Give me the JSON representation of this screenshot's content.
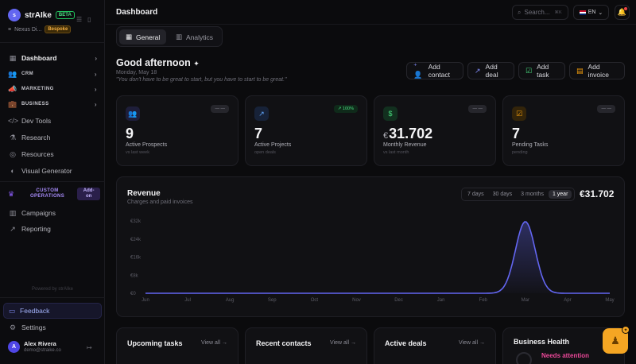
{
  "brand": {
    "logo_letter": "s",
    "name": "strAIke",
    "beta": "BETA",
    "workspace": "Nexus Di...",
    "plan": "Bespoke"
  },
  "sidebar": {
    "items": [
      {
        "label": "Dashboard",
        "icon": "grid-icon"
      },
      {
        "label": "CRM",
        "icon": "users-icon"
      },
      {
        "label": "MARKETING",
        "icon": "megaphone-icon"
      },
      {
        "label": "BUSINESS",
        "icon": "briefcase-icon"
      },
      {
        "label": "Dev Tools",
        "icon": "code-icon"
      },
      {
        "label": "Research",
        "icon": "flask-icon"
      },
      {
        "label": "Resources",
        "icon": "globe-icon"
      },
      {
        "label": "Visual Generator",
        "icon": "palette-icon"
      }
    ],
    "custom_ops": {
      "label": "CUSTOM OPERATIONS",
      "badge": "Add-on"
    },
    "items2": [
      {
        "label": "Campaigns",
        "icon": "bar-chart-icon"
      },
      {
        "label": "Reporting",
        "icon": "trend-icon"
      }
    ],
    "powered": "Powered by strAIke",
    "feedback": "Feedback",
    "settings": "Settings",
    "user": {
      "initial": "A",
      "name": "Alex Rivera",
      "email": "demo@straike.co"
    }
  },
  "header": {
    "title": "Dashboard",
    "search_placeholder": "Search...",
    "search_kbd": "⌘K",
    "language": "EN"
  },
  "tabs": [
    {
      "label": "General"
    },
    {
      "label": "Analytics"
    }
  ],
  "greeting": {
    "text": "Good afternoon",
    "date": "Monday, May 18",
    "quote": "\"You don't have to be great to start, but you have to start to be great.\""
  },
  "quick_actions": [
    {
      "label": "Add contact",
      "color": "#818cf8"
    },
    {
      "label": "Add deal",
      "color": "#818cf8"
    },
    {
      "label": "Add task",
      "color": "#4ade80"
    },
    {
      "label": "Add invoice",
      "color": "#f59e0b"
    }
  ],
  "stats": [
    {
      "value": "9",
      "label": "Active Prospects",
      "sub": "vs last week",
      "badge": "— —",
      "color": "#818cf8"
    },
    {
      "value": "7",
      "label": "Active Projects",
      "sub": "open deals",
      "badge": "↗ 100%",
      "color": "#60a5fa"
    },
    {
      "currency": "€",
      "value": "31.702",
      "label": "Monthly Revenue",
      "sub": "vs last month",
      "badge": "— —",
      "color": "#4ade80"
    },
    {
      "value": "7",
      "label": "Pending Tasks",
      "sub": "pending",
      "badge": "— —",
      "color": "#f59e0b"
    }
  ],
  "revenue": {
    "title": "Revenue",
    "subtitle": "Charges and paid invoices",
    "ranges": [
      "7 days",
      "30 days",
      "3 months",
      "1 year"
    ],
    "active_range": "1 year",
    "total": "€31.702"
  },
  "chart_data": {
    "type": "area",
    "categories": [
      "Jun",
      "Jul",
      "Aug",
      "Sep",
      "Oct",
      "Nov",
      "Dec",
      "Jan",
      "Feb",
      "Mar",
      "Apr",
      "May"
    ],
    "values": [
      0,
      0,
      0,
      0,
      0,
      0,
      0,
      0,
      0,
      31702,
      0,
      0
    ],
    "yticks": [
      "€0",
      "€8k",
      "€16k",
      "€24k",
      "€32k"
    ],
    "ylim": [
      0,
      32000
    ],
    "color": "#6366f1",
    "grid": false
  },
  "bottom_cards": [
    {
      "title": "Upcoming tasks",
      "link": "View all →"
    },
    {
      "title": "Recent contacts",
      "link": "View all →"
    },
    {
      "title": "Active deals",
      "link": "View all →"
    },
    {
      "title": "Business Health",
      "status": "Needs attention"
    }
  ]
}
